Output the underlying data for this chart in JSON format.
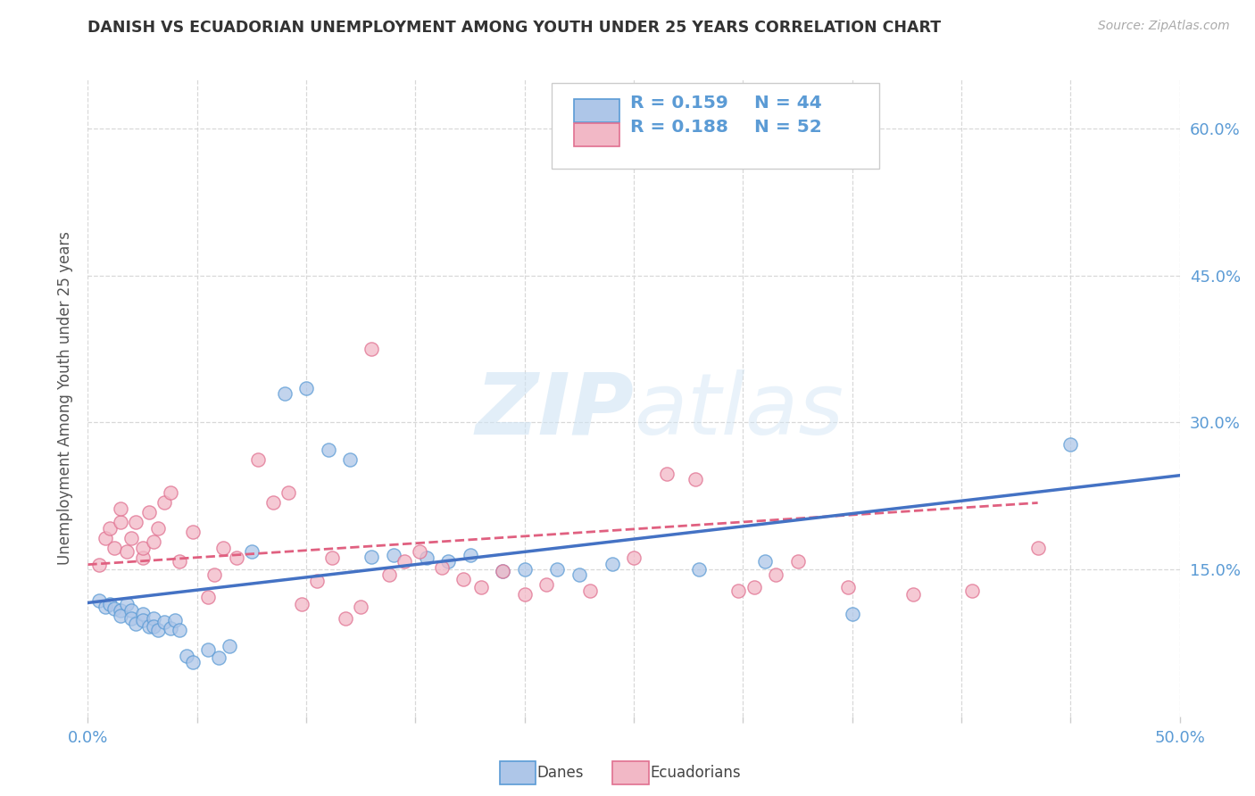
{
  "title": "DANISH VS ECUADORIAN UNEMPLOYMENT AMONG YOUTH UNDER 25 YEARS CORRELATION CHART",
  "source": "Source: ZipAtlas.com",
  "ylabel": "Unemployment Among Youth under 25 years",
  "xlim": [
    0.0,
    0.5
  ],
  "ylim": [
    0.0,
    0.65
  ],
  "xticks": [
    0.0,
    0.05,
    0.1,
    0.15,
    0.2,
    0.25,
    0.3,
    0.35,
    0.4,
    0.45,
    0.5
  ],
  "xticklabels_show": {
    "0.0": "0.0%",
    "0.5": "50.0%"
  },
  "yticks_right": [
    0.15,
    0.3,
    0.45,
    0.6
  ],
  "ytick_labels_right": [
    "15.0%",
    "30.0%",
    "45.0%",
    "60.0%"
  ],
  "background_color": "#ffffff",
  "grid_color": "#d8d8d8",
  "danes_color": "#aec6e8",
  "ecuadorians_color": "#f2b8c6",
  "danes_edge_color": "#5b9bd5",
  "ecuadorians_edge_color": "#e07090",
  "danes_line_color": "#4472c4",
  "ecuadorians_line_color": "#e06080",
  "tick_color": "#5b9bd5",
  "danes_R": "0.159",
  "danes_N": "44",
  "ecuadorians_R": "0.188",
  "ecuadorians_N": "52",
  "legend_label_danes": "Danes",
  "legend_label_ecu": "Ecuadorians",
  "watermark_zip": "ZIP",
  "watermark_atlas": "atlas",
  "danes_scatter": [
    [
      0.005,
      0.118
    ],
    [
      0.008,
      0.112
    ],
    [
      0.01,
      0.115
    ],
    [
      0.012,
      0.11
    ],
    [
      0.015,
      0.108
    ],
    [
      0.015,
      0.103
    ],
    [
      0.018,
      0.115
    ],
    [
      0.02,
      0.108
    ],
    [
      0.02,
      0.1
    ],
    [
      0.022,
      0.095
    ],
    [
      0.025,
      0.105
    ],
    [
      0.025,
      0.098
    ],
    [
      0.028,
      0.092
    ],
    [
      0.03,
      0.1
    ],
    [
      0.03,
      0.092
    ],
    [
      0.032,
      0.088
    ],
    [
      0.035,
      0.096
    ],
    [
      0.038,
      0.09
    ],
    [
      0.04,
      0.098
    ],
    [
      0.042,
      0.088
    ],
    [
      0.045,
      0.062
    ],
    [
      0.048,
      0.055
    ],
    [
      0.055,
      0.068
    ],
    [
      0.06,
      0.06
    ],
    [
      0.065,
      0.072
    ],
    [
      0.075,
      0.168
    ],
    [
      0.09,
      0.33
    ],
    [
      0.1,
      0.335
    ],
    [
      0.11,
      0.272
    ],
    [
      0.12,
      0.262
    ],
    [
      0.13,
      0.163
    ],
    [
      0.14,
      0.165
    ],
    [
      0.155,
      0.162
    ],
    [
      0.165,
      0.158
    ],
    [
      0.175,
      0.165
    ],
    [
      0.19,
      0.148
    ],
    [
      0.2,
      0.15
    ],
    [
      0.215,
      0.15
    ],
    [
      0.225,
      0.145
    ],
    [
      0.24,
      0.156
    ],
    [
      0.28,
      0.15
    ],
    [
      0.31,
      0.158
    ],
    [
      0.35,
      0.105
    ],
    [
      0.45,
      0.278
    ]
  ],
  "ecuadorians_scatter": [
    [
      0.005,
      0.155
    ],
    [
      0.008,
      0.182
    ],
    [
      0.01,
      0.192
    ],
    [
      0.012,
      0.172
    ],
    [
      0.015,
      0.198
    ],
    [
      0.015,
      0.212
    ],
    [
      0.018,
      0.168
    ],
    [
      0.02,
      0.182
    ],
    [
      0.022,
      0.198
    ],
    [
      0.025,
      0.162
    ],
    [
      0.025,
      0.172
    ],
    [
      0.028,
      0.208
    ],
    [
      0.03,
      0.178
    ],
    [
      0.032,
      0.192
    ],
    [
      0.035,
      0.218
    ],
    [
      0.038,
      0.228
    ],
    [
      0.042,
      0.158
    ],
    [
      0.048,
      0.188
    ],
    [
      0.055,
      0.122
    ],
    [
      0.058,
      0.145
    ],
    [
      0.062,
      0.172
    ],
    [
      0.068,
      0.162
    ],
    [
      0.078,
      0.262
    ],
    [
      0.085,
      0.218
    ],
    [
      0.092,
      0.228
    ],
    [
      0.098,
      0.115
    ],
    [
      0.105,
      0.138
    ],
    [
      0.112,
      0.162
    ],
    [
      0.118,
      0.1
    ],
    [
      0.125,
      0.112
    ],
    [
      0.13,
      0.375
    ],
    [
      0.138,
      0.145
    ],
    [
      0.145,
      0.158
    ],
    [
      0.152,
      0.168
    ],
    [
      0.162,
      0.152
    ],
    [
      0.172,
      0.14
    ],
    [
      0.18,
      0.132
    ],
    [
      0.19,
      0.148
    ],
    [
      0.2,
      0.125
    ],
    [
      0.21,
      0.135
    ],
    [
      0.23,
      0.128
    ],
    [
      0.25,
      0.162
    ],
    [
      0.265,
      0.248
    ],
    [
      0.278,
      0.242
    ],
    [
      0.298,
      0.128
    ],
    [
      0.305,
      0.132
    ],
    [
      0.315,
      0.145
    ],
    [
      0.325,
      0.158
    ],
    [
      0.348,
      0.132
    ],
    [
      0.378,
      0.125
    ],
    [
      0.405,
      0.128
    ],
    [
      0.435,
      0.172
    ]
  ],
  "danes_line_x": [
    0.0,
    0.5
  ],
  "danes_line_y": [
    0.116,
    0.246
  ],
  "ecu_line_x": [
    0.0,
    0.435
  ],
  "ecu_line_y": [
    0.155,
    0.218
  ]
}
